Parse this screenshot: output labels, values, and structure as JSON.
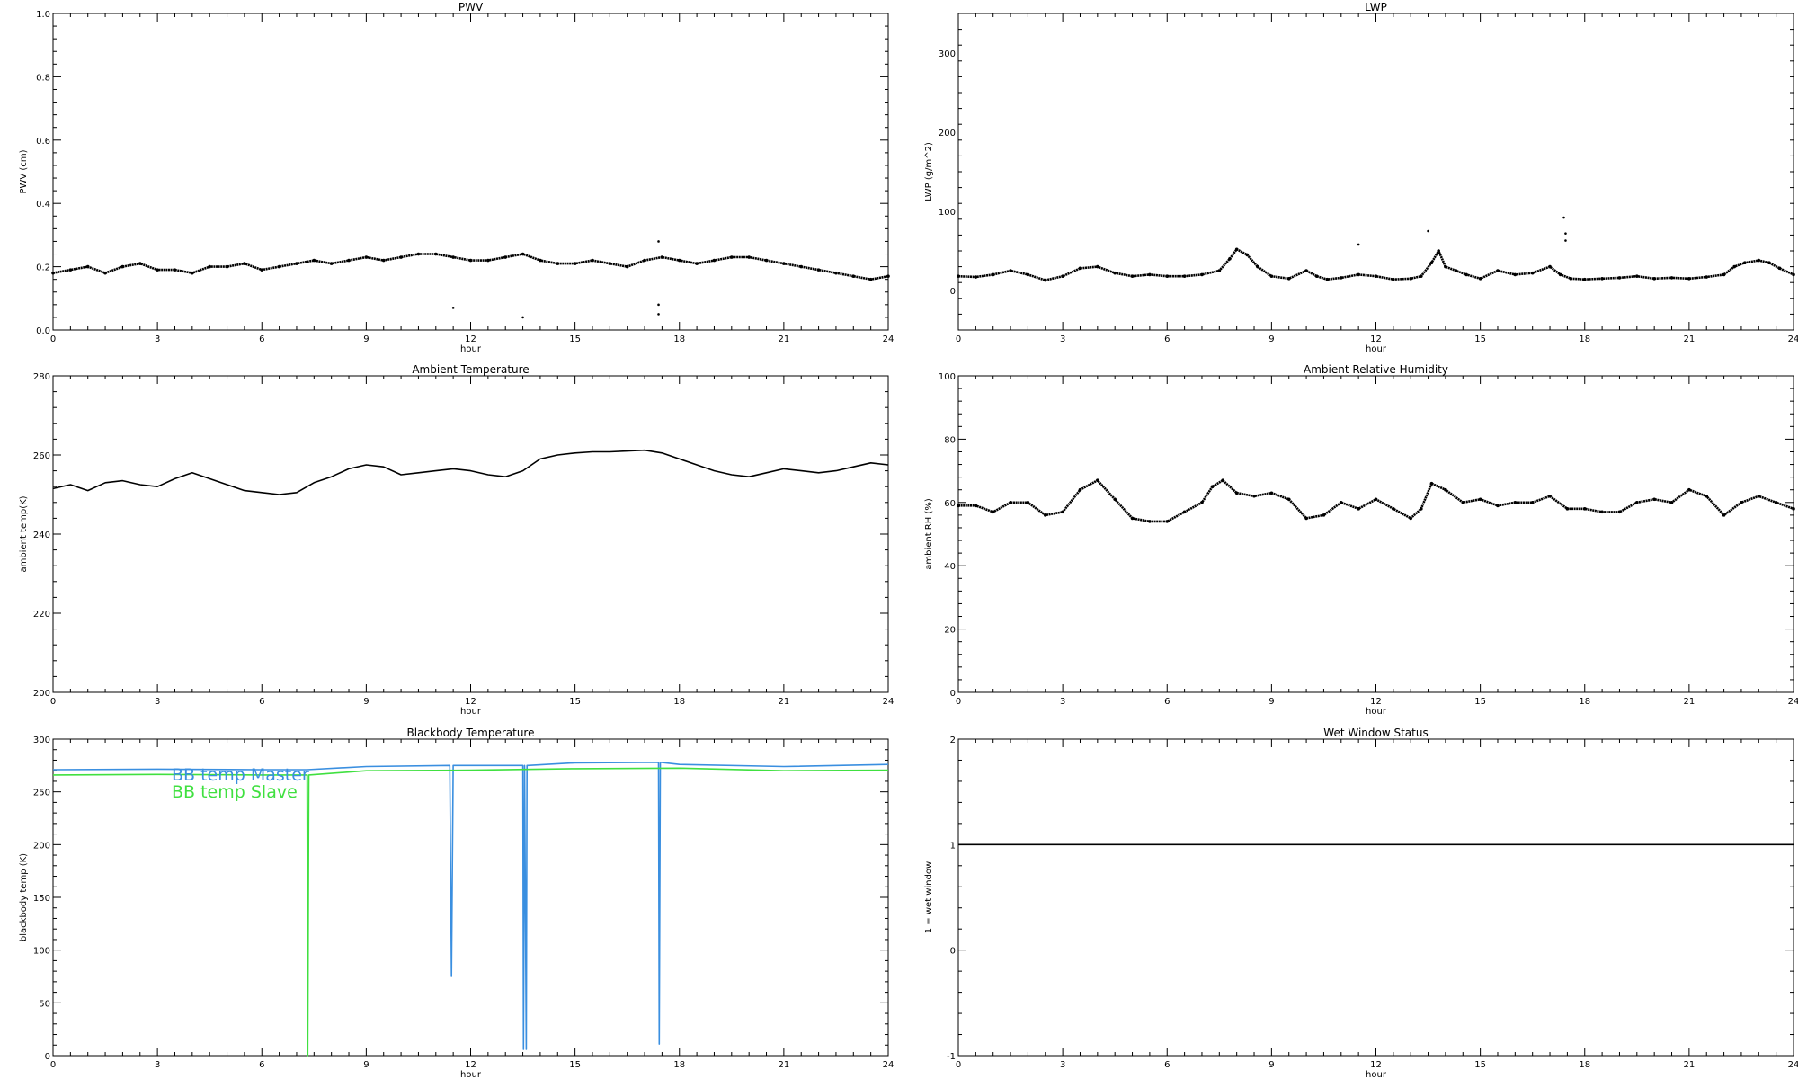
{
  "chart_data": [
    {
      "type": "scatter",
      "title": "PWV",
      "xlabel": "hour",
      "ylabel": "PWV (cm)",
      "xlim": [
        0,
        24
      ],
      "ylim": [
        0,
        1.0
      ],
      "xticks": [
        0,
        3,
        6,
        9,
        12,
        15,
        18,
        21,
        24
      ],
      "yticks": [
        0.0,
        0.2,
        0.4,
        0.6,
        0.8,
        1.0
      ],
      "ytick_labels": [
        "0.0",
        "0.2",
        "0.4",
        "0.6",
        "0.8",
        "1.0"
      ],
      "series": [
        {
          "color": "#000000",
          "x": [
            0,
            0.5,
            1.0,
            1.5,
            2.0,
            2.5,
            3.0,
            3.5,
            4.0,
            4.5,
            5.0,
            5.5,
            6.0,
            6.5,
            7.0,
            7.5,
            8.0,
            8.5,
            9.0,
            9.5,
            10.0,
            10.5,
            11.0,
            11.5,
            12.0,
            12.5,
            13.0,
            13.5,
            14.0,
            14.5,
            15.0,
            15.5,
            16.0,
            16.5,
            17.0,
            17.5,
            18.0,
            18.5,
            19.0,
            19.5,
            20.0,
            20.5,
            21.0,
            21.5,
            22.0,
            22.5,
            23.0,
            23.5,
            24.0
          ],
          "y": [
            0.18,
            0.19,
            0.2,
            0.18,
            0.2,
            0.21,
            0.19,
            0.19,
            0.18,
            0.2,
            0.2,
            0.21,
            0.19,
            0.2,
            0.21,
            0.22,
            0.21,
            0.22,
            0.23,
            0.22,
            0.23,
            0.24,
            0.24,
            0.23,
            0.22,
            0.22,
            0.23,
            0.24,
            0.22,
            0.21,
            0.21,
            0.22,
            0.21,
            0.2,
            0.22,
            0.23,
            0.22,
            0.21,
            0.22,
            0.23,
            0.23,
            0.22,
            0.21,
            0.2,
            0.19,
            0.18,
            0.17,
            0.16,
            0.17
          ]
        }
      ],
      "outliers": {
        "x": [
          11.5,
          13.5,
          17.4,
          17.4,
          17.4
        ],
        "y": [
          0.07,
          0.04,
          0.28,
          0.08,
          0.05
        ]
      }
    },
    {
      "type": "scatter",
      "title": "LWP",
      "xlabel": "hour",
      "ylabel": "LWP (g/m^2)",
      "xlim": [
        0,
        24
      ],
      "ylim": [
        -50,
        350
      ],
      "xticks": [
        0,
        3,
        6,
        9,
        12,
        15,
        18,
        21,
        24
      ],
      "yticks": [
        0,
        100,
        200,
        300
      ],
      "ytick_labels": [
        "0",
        "100",
        "200",
        "300"
      ],
      "series": [
        {
          "color": "#000000",
          "x": [
            0,
            0.5,
            1.0,
            1.5,
            2.0,
            2.5,
            3.0,
            3.5,
            4.0,
            4.5,
            5.0,
            5.5,
            6.0,
            6.5,
            7.0,
            7.5,
            7.8,
            8.0,
            8.3,
            8.6,
            9.0,
            9.5,
            10.0,
            10.3,
            10.6,
            11.0,
            11.5,
            12.0,
            12.5,
            13.0,
            13.3,
            13.6,
            13.8,
            14.0,
            14.3,
            14.6,
            15.0,
            15.5,
            16.0,
            16.5,
            17.0,
            17.3,
            17.6,
            18.0,
            18.5,
            19.0,
            19.5,
            20.0,
            20.5,
            21.0,
            21.5,
            22.0,
            22.3,
            22.6,
            23.0,
            23.3,
            23.6,
            24.0
          ],
          "y": [
            18,
            17,
            20,
            25,
            20,
            13,
            18,
            28,
            30,
            22,
            18,
            20,
            18,
            18,
            20,
            25,
            40,
            52,
            45,
            30,
            18,
            15,
            25,
            18,
            14,
            16,
            20,
            18,
            14,
            15,
            18,
            35,
            50,
            30,
            25,
            20,
            15,
            25,
            20,
            22,
            30,
            20,
            15,
            14,
            15,
            16,
            18,
            15,
            16,
            15,
            17,
            20,
            30,
            35,
            38,
            35,
            28,
            20
          ]
        }
      ],
      "outliers": {
        "x": [
          11.5,
          13.5,
          17.4,
          17.45,
          17.45
        ],
        "y": [
          58,
          75,
          92,
          72,
          63
        ]
      }
    },
    {
      "type": "line",
      "title": "Ambient Temperature",
      "xlabel": "hour",
      "ylabel": "ambient temp(K)",
      "xlim": [
        0,
        24
      ],
      "ylim": [
        200,
        280
      ],
      "xticks": [
        0,
        3,
        6,
        9,
        12,
        15,
        18,
        21,
        24
      ],
      "yticks": [
        200,
        220,
        240,
        260,
        280
      ],
      "ytick_labels": [
        "200",
        "220",
        "240",
        "260",
        "280"
      ],
      "series": [
        {
          "color": "#000000",
          "x": [
            0,
            0.5,
            1.0,
            1.5,
            2.0,
            2.5,
            3.0,
            3.5,
            4.0,
            4.5,
            5.0,
            5.5,
            6.0,
            6.5,
            7.0,
            7.5,
            8.0,
            8.5,
            9.0,
            9.5,
            10.0,
            10.5,
            11.0,
            11.5,
            12.0,
            12.5,
            13.0,
            13.5,
            14.0,
            14.5,
            15.0,
            15.5,
            16.0,
            16.5,
            17.0,
            17.5,
            18.0,
            18.5,
            19.0,
            19.5,
            20.0,
            20.5,
            21.0,
            21.5,
            22.0,
            22.5,
            23.0,
            23.5,
            24.0
          ],
          "y": [
            251.5,
            252.5,
            251,
            253,
            253.5,
            252.5,
            252,
            254,
            255.5,
            254,
            252.5,
            251,
            250.5,
            250,
            250.5,
            253,
            254.5,
            256.5,
            257.5,
            257,
            255,
            255.5,
            256,
            256.5,
            256,
            255,
            254.5,
            256,
            259,
            260,
            260.5,
            260.8,
            260.8,
            261,
            261.2,
            260.5,
            259,
            257.5,
            256,
            255,
            254.5,
            255.5,
            256.5,
            256,
            255.5,
            256,
            257,
            258,
            257.5
          ]
        }
      ]
    },
    {
      "type": "scatter",
      "title": "Ambient Relative Humidity",
      "xlabel": "hour",
      "ylabel": "ambient RH (%)",
      "xlim": [
        0,
        24
      ],
      "ylim": [
        0,
        100
      ],
      "xticks": [
        0,
        3,
        6,
        9,
        12,
        15,
        18,
        21,
        24
      ],
      "yticks": [
        0,
        20,
        40,
        60,
        80,
        100
      ],
      "ytick_labels": [
        "0",
        "20",
        "40",
        "60",
        "80",
        "100"
      ],
      "series": [
        {
          "color": "#000000",
          "x": [
            0,
            0.5,
            1.0,
            1.5,
            2.0,
            2.5,
            3.0,
            3.5,
            4.0,
            4.5,
            5.0,
            5.5,
            6.0,
            6.5,
            7.0,
            7.3,
            7.6,
            8.0,
            8.5,
            9.0,
            9.5,
            10.0,
            10.5,
            11.0,
            11.5,
            12.0,
            12.5,
            13.0,
            13.3,
            13.6,
            14.0,
            14.5,
            15.0,
            15.5,
            16.0,
            16.5,
            17.0,
            17.5,
            18.0,
            18.5,
            19.0,
            19.5,
            20.0,
            20.5,
            21.0,
            21.5,
            22.0,
            22.5,
            23.0,
            23.5,
            24.0
          ],
          "y": [
            59,
            59,
            57,
            60,
            60,
            56,
            57,
            64,
            67,
            61,
            55,
            54,
            54,
            57,
            60,
            65,
            67,
            63,
            62,
            63,
            61,
            55,
            56,
            60,
            58,
            61,
            58,
            55,
            58,
            66,
            64,
            60,
            61,
            59,
            60,
            60,
            62,
            58,
            58,
            57,
            57,
            60,
            61,
            60,
            64,
            62,
            56,
            60,
            62,
            60,
            58
          ]
        }
      ]
    },
    {
      "type": "line",
      "title": "Blackbody Temperature",
      "xlabel": "hour",
      "ylabel": "blackbody temp (K)",
      "xlim": [
        0,
        24
      ],
      "ylim": [
        0,
        300
      ],
      "xticks": [
        0,
        3,
        6,
        9,
        12,
        15,
        18,
        21,
        24
      ],
      "yticks": [
        0,
        50,
        100,
        150,
        200,
        250,
        300
      ],
      "ytick_labels": [
        "0",
        "50",
        "100",
        "150",
        "200",
        "250",
        "300"
      ],
      "legend_position": "upper-left",
      "series": [
        {
          "name": "BB temp Master",
          "color": "#3a8fe0",
          "x": [
            0,
            3,
            6,
            7.3,
            9,
            11.4,
            11.45,
            11.5,
            12,
            13.5,
            13.52,
            13.55,
            13.6,
            13.62,
            13.65,
            15,
            17.4,
            17.42,
            17.45,
            18,
            21,
            24
          ],
          "y": [
            271,
            271.5,
            271,
            271,
            274,
            275,
            75,
            275,
            275,
            275,
            6,
            275,
            6,
            275,
            275,
            277.5,
            278,
            11,
            278,
            276,
            274,
            276
          ]
        },
        {
          "name": "BB temp Slave",
          "color": "#40e040",
          "x": [
            0,
            3,
            6,
            7.3,
            7.32,
            7.35,
            9,
            12,
            15,
            18,
            21,
            24
          ],
          "y": [
            266,
            266.5,
            266,
            266,
            0,
            266,
            270,
            270.5,
            272,
            272.5,
            270,
            270.5
          ]
        }
      ]
    },
    {
      "type": "line",
      "title": "Wet Window Status",
      "xlabel": "hour",
      "ylabel": "1 = wet window",
      "xlim": [
        0,
        24
      ],
      "ylim": [
        -1,
        2
      ],
      "xticks": [
        0,
        3,
        6,
        9,
        12,
        15,
        18,
        21,
        24
      ],
      "yticks": [
        -1,
        0,
        1,
        2
      ],
      "ytick_labels": [
        "-1",
        "0",
        "1",
        "2"
      ],
      "series": [
        {
          "color": "#000000",
          "x": [
            0,
            24
          ],
          "y": [
            1,
            1
          ]
        }
      ]
    }
  ]
}
